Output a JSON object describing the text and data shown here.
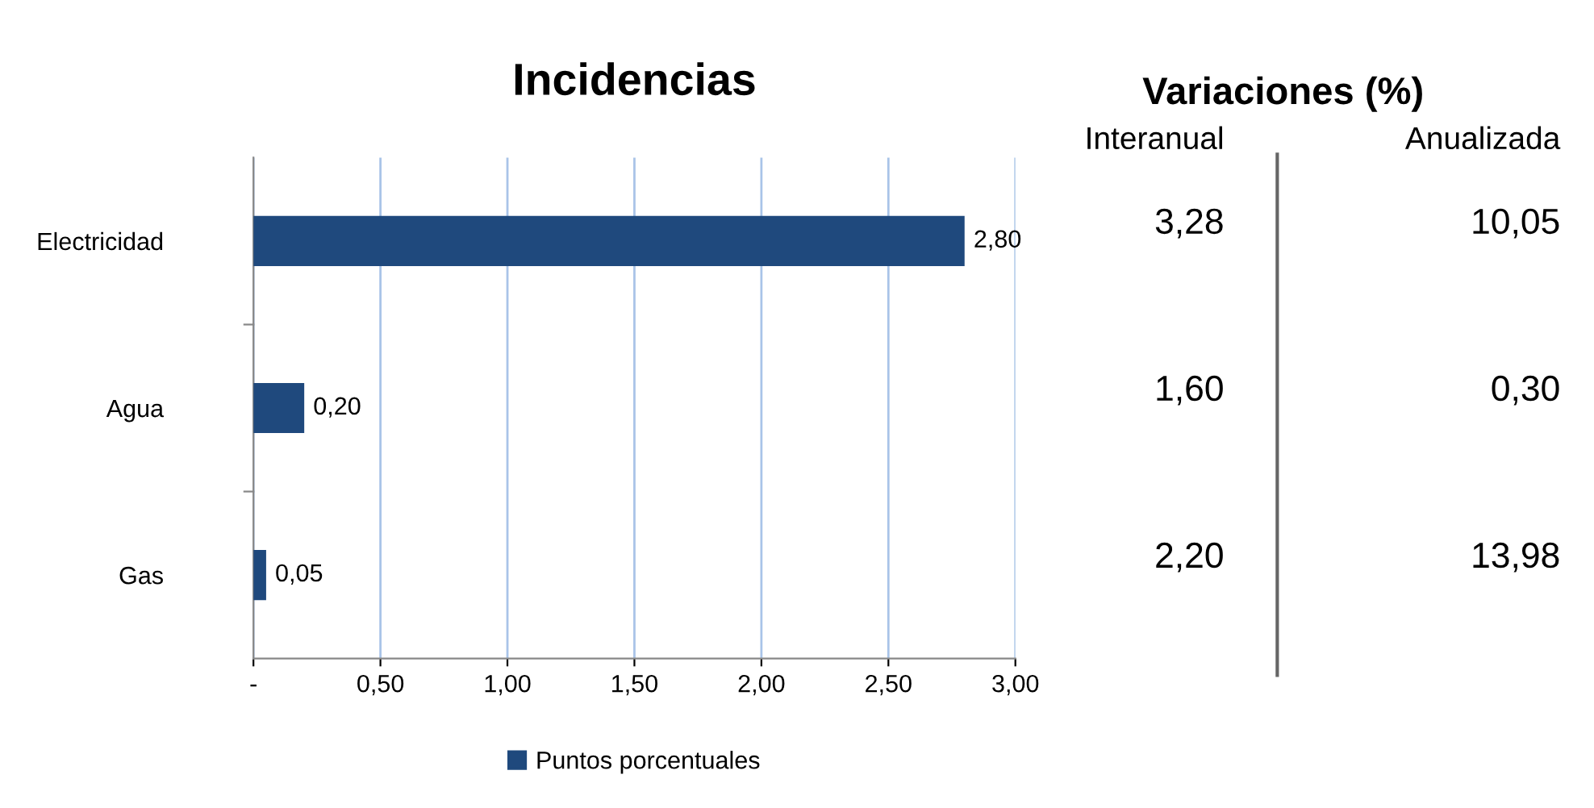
{
  "chart_data": [
    {
      "type": "bar",
      "orientation": "horizontal",
      "title": "Incidencias",
      "categories": [
        "Electricidad",
        "Agua",
        "Gas"
      ],
      "series": [
        {
          "name": "Puntos porcentuales",
          "color": "#1f497d",
          "values": [
            2.8,
            0.2,
            0.05
          ]
        }
      ],
      "value_labels": [
        "2,80",
        "0,20",
        "0,05"
      ],
      "xlim": [
        0,
        3
      ],
      "xticks": [
        {
          "value": 0,
          "label": "-"
        },
        {
          "value": 0.5,
          "label": "0,50"
        },
        {
          "value": 1,
          "label": "1,00"
        },
        {
          "value": 1.5,
          "label": "1,50"
        },
        {
          "value": 2,
          "label": "2,00"
        },
        {
          "value": 2.5,
          "label": "2,50"
        },
        {
          "value": 3,
          "label": "3,00"
        }
      ],
      "grid": "x",
      "legend": "bottom"
    },
    {
      "type": "other",
      "title": "Variaciones (%)",
      "categories": [
        "Interanual",
        "Anualizada"
      ],
      "cell_labels": [
        [
          "3,28",
          "10,05"
        ],
        [
          "1,60",
          "0,30"
        ],
        [
          "2,20",
          "13,98"
        ]
      ]
    }
  ]
}
